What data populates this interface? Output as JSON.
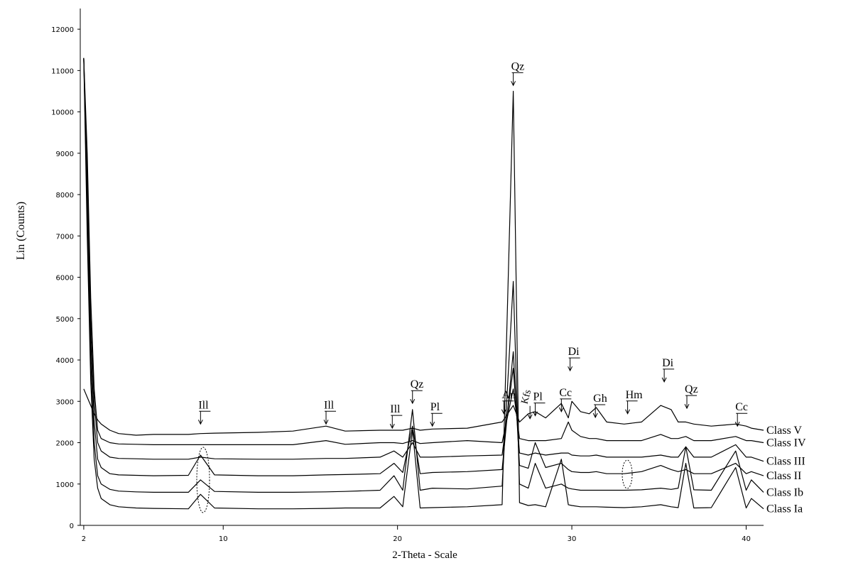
{
  "chart_data": {
    "type": "line",
    "x_label": "2-Theta - Scale",
    "y_label": "Lin (Counts)",
    "x": [
      2,
      2.2,
      2.4,
      2.6,
      2.8,
      3,
      3.5,
      4,
      5,
      6,
      8,
      8.7,
      9.5,
      12,
      14,
      15.9,
      17,
      19,
      19.8,
      20.3,
      20.86,
      21.3,
      22,
      24,
      26,
      26.64,
      27,
      27.5,
      27.9,
      28.5,
      29.4,
      29.8,
      30,
      30.5,
      31,
      31.4,
      32,
      33,
      34,
      35.1,
      35.7,
      36.1,
      36.54,
      37,
      38,
      39.4,
      40,
      40.3,
      41
    ],
    "series": [
      {
        "name": "Class V",
        "color": "#000000",
        "values": [
          3300,
          3100,
          2900,
          2700,
          2550,
          2450,
          2300,
          2220,
          2180,
          2200,
          2200,
          2220,
          2230,
          2250,
          2280,
          2400,
          2280,
          2300,
          2300,
          2300,
          2350,
          2300,
          2330,
          2350,
          2500,
          2900,
          2500,
          2700,
          2750,
          2600,
          2950,
          2600,
          3000,
          2750,
          2700,
          2850,
          2500,
          2450,
          2500,
          2900,
          2800,
          2500,
          2500,
          2450,
          2400,
          2450,
          2400,
          2350,
          2300
        ]
      },
      {
        "name": "Class IV",
        "color": "#000000",
        "values": [
          11300,
          9000,
          5500,
          3300,
          2300,
          2100,
          2000,
          1970,
          1960,
          1950,
          1950,
          1950,
          1950,
          1950,
          1950,
          2050,
          1960,
          2000,
          2000,
          1980,
          2050,
          1980,
          2000,
          2050,
          2000,
          3300,
          2100,
          2050,
          2050,
          2050,
          2100,
          2500,
          2300,
          2150,
          2100,
          2100,
          2050,
          2050,
          2050,
          2200,
          2100,
          2100,
          2150,
          2050,
          2050,
          2150,
          2050,
          2050,
          2000
        ]
      },
      {
        "name": "Class III",
        "color": "#000000",
        "values": [
          11300,
          8500,
          5000,
          3000,
          2000,
          1800,
          1650,
          1620,
          1610,
          1600,
          1600,
          1650,
          1610,
          1600,
          1600,
          1620,
          1620,
          1650,
          1800,
          1650,
          2000,
          1650,
          1650,
          1680,
          1700,
          3800,
          1750,
          1700,
          1750,
          1700,
          1750,
          1750,
          1700,
          1680,
          1680,
          1700,
          1650,
          1650,
          1650,
          1700,
          1650,
          1650,
          1900,
          1650,
          1650,
          1950,
          1650,
          1650,
          1550
        ]
      },
      {
        "name": "Class II",
        "color": "#000000",
        "values": [
          11300,
          8000,
          4500,
          2500,
          1600,
          1400,
          1250,
          1220,
          1210,
          1200,
          1210,
          1700,
          1220,
          1200,
          1200,
          1220,
          1230,
          1250,
          1500,
          1280,
          2400,
          1250,
          1280,
          1300,
          1350,
          4200,
          1450,
          1380,
          2000,
          1400,
          1500,
          1350,
          1300,
          1280,
          1280,
          1300,
          1250,
          1250,
          1300,
          1450,
          1350,
          1300,
          1350,
          1250,
          1250,
          1500,
          1250,
          1300,
          1200
        ]
      },
      {
        "name": "Class Ib",
        "color": "#000000",
        "values": [
          11300,
          7500,
          4000,
          2000,
          1200,
          1000,
          870,
          830,
          810,
          800,
          800,
          1100,
          820,
          800,
          800,
          810,
          820,
          850,
          1200,
          850,
          2800,
          850,
          900,
          880,
          950,
          5900,
          1000,
          900,
          1500,
          900,
          1000,
          900,
          880,
          850,
          850,
          850,
          850,
          850,
          860,
          900,
          870,
          900,
          1900,
          860,
          850,
          1800,
          850,
          1100,
          800
        ]
      },
      {
        "name": "Class Ia",
        "color": "#000000",
        "values": [
          11300,
          7000,
          3500,
          1600,
          900,
          650,
          500,
          450,
          420,
          410,
          400,
          750,
          420,
          400,
          400,
          410,
          420,
          420,
          700,
          450,
          2300,
          420,
          430,
          450,
          500,
          10500,
          550,
          480,
          500,
          450,
          1600,
          500,
          480,
          450,
          450,
          450,
          440,
          430,
          450,
          500,
          450,
          430,
          1500,
          420,
          430,
          1400,
          420,
          650,
          400
        ]
      }
    ],
    "annotations": [
      {
        "text": "Ill",
        "x": 8.7,
        "y": 2450
      },
      {
        "text": "Ill",
        "x": 15.9,
        "y": 2450
      },
      {
        "text": "Ill",
        "x": 19.7,
        "y": 2350
      },
      {
        "text": "Qz",
        "x": 20.86,
        "y": 2950
      },
      {
        "text": "Pl",
        "x": 22,
        "y": 2400
      },
      {
        "text": "An",
        "x": 26.1,
        "y": 2700
      },
      {
        "text": "Qz",
        "x": 26.64,
        "y": 10640
      },
      {
        "text": "Kfs",
        "x": 27.6,
        "y": 2580,
        "vertical": true
      },
      {
        "text": "Pl",
        "x": 27.9,
        "y": 2650
      },
      {
        "text": "Cc",
        "x": 29.4,
        "y": 2750
      },
      {
        "text": "Di",
        "x": 29.9,
        "y": 3740
      },
      {
        "text": "Gh",
        "x": 31.35,
        "y": 2610
      },
      {
        "text": "Hm",
        "x": 33.2,
        "y": 2700
      },
      {
        "text": "Di",
        "x": 35.3,
        "y": 3470
      },
      {
        "text": "Qz",
        "x": 36.6,
        "y": 2830
      },
      {
        "text": "Cc",
        "x": 39.5,
        "y": 2400
      }
    ],
    "xlim": [
      1.8,
      41
    ],
    "ylim": [
      0,
      12500
    ],
    "xticks": [
      2,
      10,
      20,
      30,
      40
    ],
    "yticks": [
      0,
      1000,
      2000,
      3000,
      4000,
      5000,
      6000,
      7000,
      8000,
      9000,
      10000,
      11000,
      12000
    ],
    "grid": false
  }
}
